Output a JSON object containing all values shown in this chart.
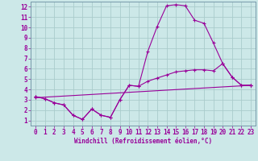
{
  "title": "",
  "xlabel": "Windchill (Refroidissement éolien,°C)",
  "bg_color": "#cce8e8",
  "grid_color": "#aacccc",
  "line_color": "#990099",
  "xlim": [
    -0.5,
    23.5
  ],
  "ylim": [
    0.5,
    12.5
  ],
  "xticks": [
    0,
    1,
    2,
    3,
    4,
    5,
    6,
    7,
    8,
    9,
    10,
    11,
    12,
    13,
    14,
    15,
    16,
    17,
    18,
    19,
    20,
    21,
    22,
    23
  ],
  "yticks": [
    1,
    2,
    3,
    4,
    5,
    6,
    7,
    8,
    9,
    10,
    11,
    12
  ],
  "line1_x": [
    0,
    1,
    2,
    3,
    4,
    5,
    6,
    7,
    8,
    9,
    10,
    11,
    12,
    13,
    14,
    15,
    16,
    17,
    18,
    19,
    20,
    21,
    22,
    23
  ],
  "line1_y": [
    3.3,
    3.1,
    2.7,
    2.5,
    1.5,
    1.1,
    2.1,
    1.5,
    1.3,
    3.0,
    4.4,
    4.3,
    7.7,
    10.1,
    12.1,
    12.2,
    12.1,
    10.7,
    10.4,
    8.5,
    6.5,
    5.2,
    4.4,
    4.4
  ],
  "line2_x": [
    0,
    1,
    2,
    3,
    4,
    5,
    6,
    7,
    8,
    9,
    10,
    11,
    12,
    13,
    14,
    15,
    16,
    17,
    18,
    19,
    20,
    21,
    22,
    23
  ],
  "line2_y": [
    3.3,
    3.1,
    2.7,
    2.5,
    1.5,
    1.1,
    2.1,
    1.5,
    1.3,
    3.0,
    4.4,
    4.3,
    4.8,
    5.1,
    5.4,
    5.7,
    5.8,
    5.9,
    5.9,
    5.8,
    6.5,
    5.2,
    4.4,
    4.4
  ],
  "line3_x": [
    0,
    23
  ],
  "line3_y": [
    3.2,
    4.4
  ],
  "tick_fontsize": 5.5,
  "xlabel_fontsize": 5.5
}
